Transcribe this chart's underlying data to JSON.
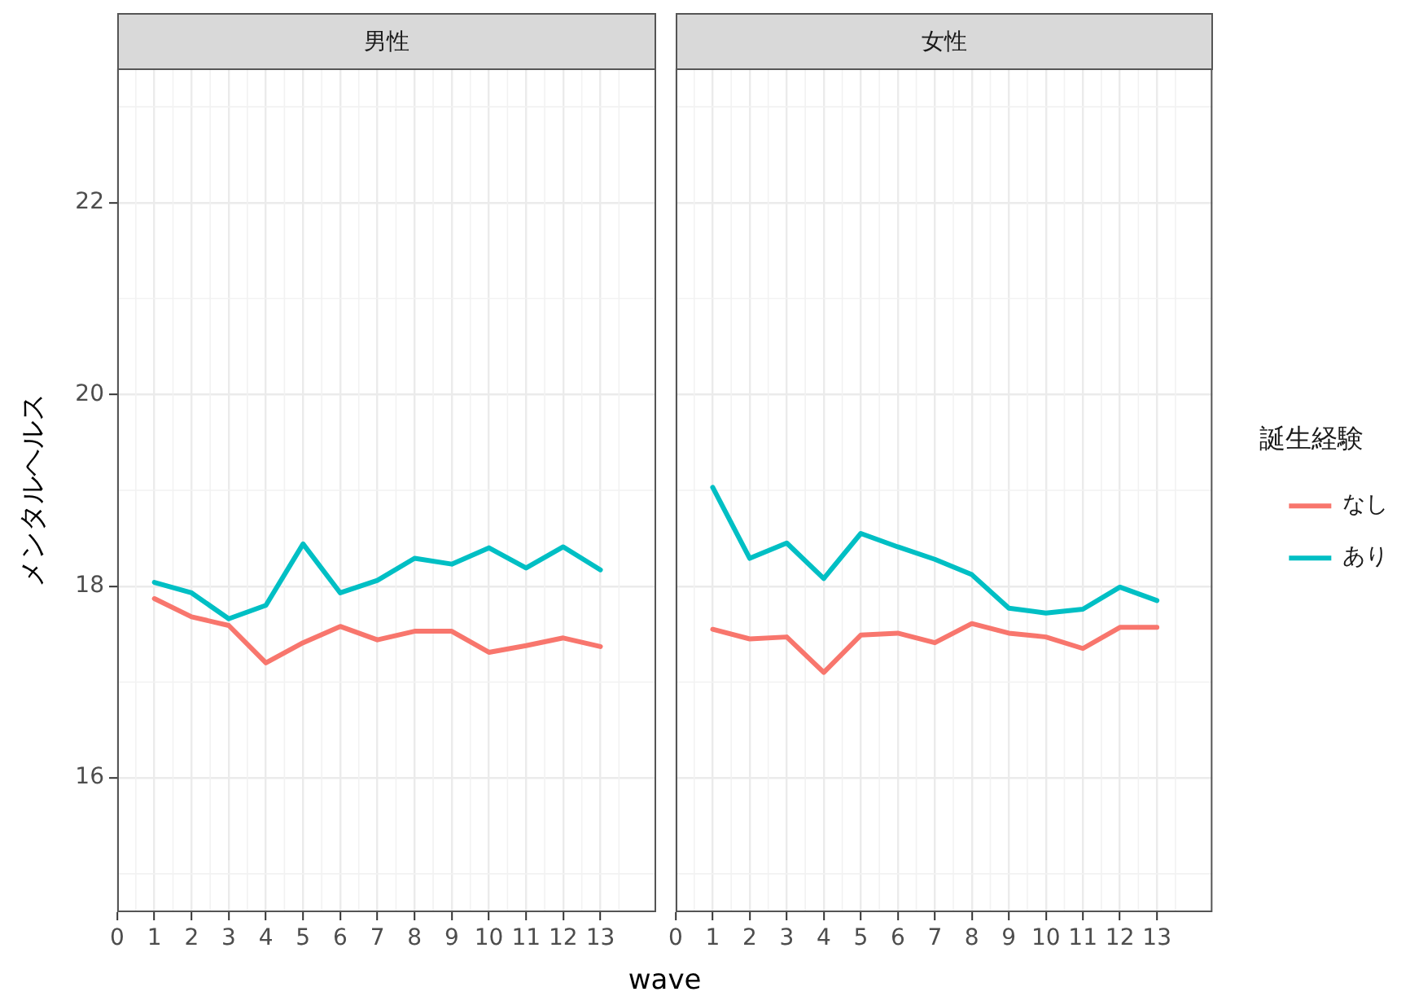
{
  "chart_data": [
    {
      "type": "line",
      "title": "男性",
      "xlabel": "wave",
      "ylabel": "メンタルヘルス",
      "x": [
        1,
        2,
        3,
        4,
        5,
        6,
        7,
        8,
        9,
        10,
        11,
        12,
        13
      ],
      "series": [
        {
          "color": "#f8766d",
          "values": [
            17.87,
            17.68,
            17.59,
            17.2,
            17.41,
            17.58,
            17.44,
            17.53,
            17.53,
            17.31,
            17.38,
            17.46,
            17.37
          ]
        },
        {
          "color": "#00bfc4",
          "values": [
            18.04,
            17.93,
            17.66,
            17.8,
            18.44,
            17.93,
            18.06,
            18.29,
            18.23,
            18.4,
            18.19,
            18.41,
            18.17
          ]
        }
      ],
      "xlim": [
        0,
        14.5
      ],
      "xticks": [
        0,
        1,
        2,
        3,
        4,
        5,
        6,
        7,
        8,
        9,
        10,
        11,
        12,
        13
      ],
      "ylim": [
        14.6,
        23.4
      ],
      "yticks": [
        16,
        18,
        20,
        22
      ],
      "grid": true
    },
    {
      "type": "line",
      "title": "女性",
      "legend_title": "誕生経験",
      "legend": "right",
      "tick_labels": "x",
      "x": [
        1,
        2,
        3,
        4,
        5,
        6,
        7,
        8,
        9,
        10,
        11,
        12,
        13
      ],
      "series": [
        {
          "name": "なし",
          "color": "#f8766d",
          "values": [
            17.55,
            17.45,
            17.47,
            17.1,
            17.49,
            17.51,
            17.41,
            17.61,
            17.51,
            17.47,
            17.35,
            17.57,
            17.57
          ]
        },
        {
          "name": "あり",
          "color": "#00bfc4",
          "values": [
            19.03,
            18.29,
            18.45,
            18.08,
            18.55,
            18.41,
            18.28,
            18.12,
            17.77,
            17.72,
            17.76,
            17.99,
            17.85
          ]
        }
      ],
      "xlim": [
        0,
        14.5
      ],
      "xticks": [
        0,
        1,
        2,
        3,
        4,
        5,
        6,
        7,
        8,
        9,
        10,
        11,
        12,
        13
      ],
      "ylim": [
        14.6,
        23.4
      ],
      "yticks": [
        16,
        18,
        20,
        22
      ],
      "grid": true
    }
  ]
}
